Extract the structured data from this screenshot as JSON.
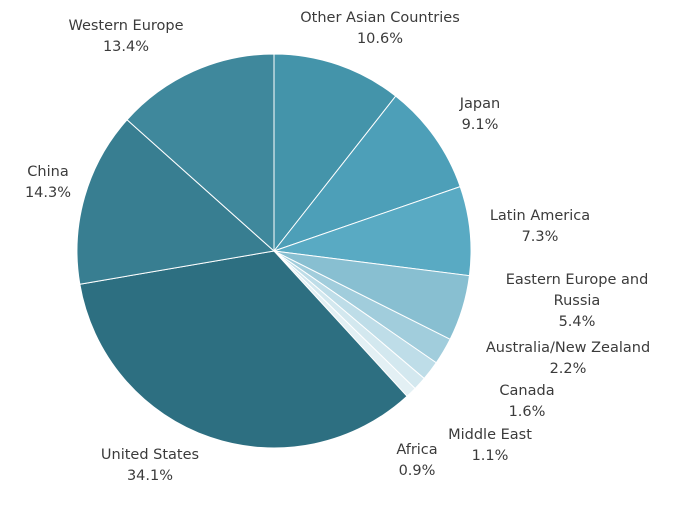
{
  "chart_data": {
    "type": "pie",
    "title": "",
    "start_angle_deg": 0,
    "direction": "clockwise",
    "slices": [
      {
        "label": "Other Asian Countries",
        "value": 10.6,
        "value_label": "10.6%",
        "color": "#4494aa"
      },
      {
        "label": "Japan",
        "value": 9.1,
        "value_label": "9.1%",
        "color": "#4d9fb8"
      },
      {
        "label": "Latin America",
        "value": 7.3,
        "value_label": "7.3%",
        "color": "#59aac3"
      },
      {
        "label": "Eastern Europe and Russia",
        "value": 5.4,
        "value_label": "5.4%",
        "color": "#88bfd1"
      },
      {
        "label": "Australia/New Zealand",
        "value": 2.2,
        "value_label": "2.2%",
        "color": "#a1cddc"
      },
      {
        "label": "Canada",
        "value": 1.6,
        "value_label": "1.6%",
        "color": "#bedde8"
      },
      {
        "label": "Middle East",
        "value": 1.1,
        "value_label": "1.1%",
        "color": "#d3e8ef"
      },
      {
        "label": "Africa",
        "value": 0.9,
        "value_label": "0.9%",
        "color": "#e3f0f4"
      },
      {
        "label": "United States",
        "value": 34.1,
        "value_label": "34.1%",
        "color": "#2d6f81"
      },
      {
        "label": "China",
        "value": 14.3,
        "value_label": "14.3%",
        "color": "#387e91"
      },
      {
        "label": "Western Europe",
        "value": 13.4,
        "value_label": "13.4%",
        "color": "#3f889c"
      }
    ]
  }
}
